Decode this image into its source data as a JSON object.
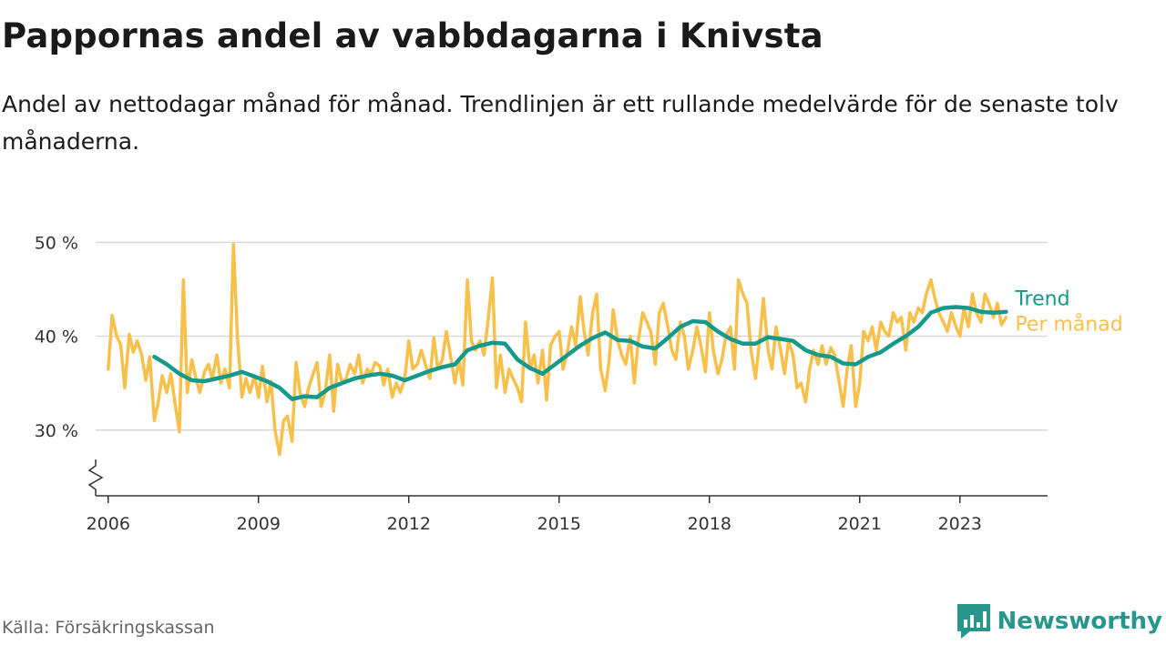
{
  "header": {
    "title": "Pappornas andel av vabbdagarna i Knivsta",
    "subtitle": "Andel av nettodagar månad för månad. Trendlinjen är ett rullande medelvärde för de senaste tolv månaderna."
  },
  "footer": {
    "source": "Källa: Försäkringskassan",
    "brand": "Newsworthy"
  },
  "colors": {
    "trend": "#14998a",
    "monthly": "#f7c04b",
    "grid": "#d9d9d9",
    "axis": "#333333",
    "brand": "#26978a"
  },
  "chart_data": {
    "type": "line",
    "title": "Pappornas andel av vabbdagarna i Knivsta",
    "xlabel": "",
    "ylabel": "",
    "xlim": [
      2005.75,
      2024.75
    ],
    "ylim": [
      23.0,
      51.0
    ],
    "ybreak": true,
    "grid": true,
    "y_ticks": [
      {
        "value": 30,
        "label": "30 %"
      },
      {
        "value": 40,
        "label": "40 %"
      },
      {
        "value": 50,
        "label": "50 %"
      }
    ],
    "x_ticks": [
      {
        "value": 2006,
        "label": "2006"
      },
      {
        "value": 2009,
        "label": "2009"
      },
      {
        "value": 2012,
        "label": "2012"
      },
      {
        "value": 2015,
        "label": "2015"
      },
      {
        "value": 2018,
        "label": "2018"
      },
      {
        "value": 2021,
        "label": "2021"
      },
      {
        "value": 2023,
        "label": "2023"
      }
    ],
    "series": [
      {
        "name": "Per månad",
        "color": "#f7c04b",
        "points": [
          [
            2006.0,
            36.5
          ],
          [
            2006.08,
            42.2
          ],
          [
            2006.17,
            40.0
          ],
          [
            2006.25,
            39.1
          ],
          [
            2006.33,
            34.5
          ],
          [
            2006.42,
            40.2
          ],
          [
            2006.5,
            38.3
          ],
          [
            2006.58,
            39.5
          ],
          [
            2006.67,
            38.0
          ],
          [
            2006.75,
            35.3
          ],
          [
            2006.83,
            37.8
          ],
          [
            2006.92,
            31.0
          ],
          [
            2007.0,
            33.0
          ],
          [
            2007.08,
            35.8
          ],
          [
            2007.17,
            34.0
          ],
          [
            2007.25,
            36.0
          ],
          [
            2007.33,
            33.0
          ],
          [
            2007.42,
            29.8
          ],
          [
            2007.5,
            46.0
          ],
          [
            2007.58,
            34.0
          ],
          [
            2007.67,
            37.5
          ],
          [
            2007.75,
            35.5
          ],
          [
            2007.83,
            34.0
          ],
          [
            2007.92,
            36.2
          ],
          [
            2008.0,
            37.0
          ],
          [
            2008.08,
            35.5
          ],
          [
            2008.17,
            38.0
          ],
          [
            2008.25,
            35.0
          ],
          [
            2008.33,
            36.5
          ],
          [
            2008.42,
            34.5
          ],
          [
            2008.5,
            49.8
          ],
          [
            2008.58,
            40.0
          ],
          [
            2008.67,
            33.5
          ],
          [
            2008.75,
            35.5
          ],
          [
            2008.83,
            34.0
          ],
          [
            2008.92,
            35.8
          ],
          [
            2009.0,
            33.5
          ],
          [
            2009.08,
            36.8
          ],
          [
            2009.17,
            33.0
          ],
          [
            2009.25,
            35.2
          ],
          [
            2009.33,
            30.0
          ],
          [
            2009.42,
            27.4
          ],
          [
            2009.5,
            31.0
          ],
          [
            2009.58,
            31.5
          ],
          [
            2009.67,
            28.8
          ],
          [
            2009.75,
            37.2
          ],
          [
            2009.83,
            34.0
          ],
          [
            2009.92,
            32.5
          ],
          [
            2010.0,
            34.5
          ],
          [
            2010.08,
            35.8
          ],
          [
            2010.17,
            37.2
          ],
          [
            2010.25,
            32.5
          ],
          [
            2010.33,
            34.0
          ],
          [
            2010.42,
            38.0
          ],
          [
            2010.5,
            32.0
          ],
          [
            2010.58,
            37.0
          ],
          [
            2010.67,
            35.0
          ],
          [
            2010.75,
            35.5
          ],
          [
            2010.83,
            37.0
          ],
          [
            2010.92,
            36.0
          ],
          [
            2011.0,
            38.0
          ],
          [
            2011.08,
            35.0
          ],
          [
            2011.17,
            36.5
          ],
          [
            2011.25,
            36.0
          ],
          [
            2011.33,
            37.2
          ],
          [
            2011.42,
            36.8
          ],
          [
            2011.5,
            34.8
          ],
          [
            2011.58,
            36.5
          ],
          [
            2011.67,
            33.5
          ],
          [
            2011.75,
            35.0
          ],
          [
            2011.83,
            34.0
          ],
          [
            2011.92,
            35.5
          ],
          [
            2012.0,
            39.5
          ],
          [
            2012.08,
            36.5
          ],
          [
            2012.17,
            37.0
          ],
          [
            2012.25,
            38.5
          ],
          [
            2012.33,
            37.0
          ],
          [
            2012.42,
            35.5
          ],
          [
            2012.5,
            39.8
          ],
          [
            2012.58,
            36.5
          ],
          [
            2012.67,
            37.5
          ],
          [
            2012.75,
            40.5
          ],
          [
            2012.83,
            38.0
          ],
          [
            2012.92,
            35.0
          ],
          [
            2013.0,
            37.5
          ],
          [
            2013.08,
            34.8
          ],
          [
            2013.17,
            46.0
          ],
          [
            2013.25,
            39.5
          ],
          [
            2013.33,
            38.5
          ],
          [
            2013.42,
            39.5
          ],
          [
            2013.5,
            38.0
          ],
          [
            2013.58,
            41.5
          ],
          [
            2013.67,
            46.2
          ],
          [
            2013.75,
            34.5
          ],
          [
            2013.83,
            38.0
          ],
          [
            2013.92,
            34.0
          ],
          [
            2014.0,
            36.5
          ],
          [
            2014.08,
            35.5
          ],
          [
            2014.17,
            34.5
          ],
          [
            2014.25,
            33.0
          ],
          [
            2014.33,
            41.5
          ],
          [
            2014.42,
            36.5
          ],
          [
            2014.5,
            38.0
          ],
          [
            2014.58,
            35.0
          ],
          [
            2014.67,
            38.5
          ],
          [
            2014.75,
            33.2
          ],
          [
            2014.83,
            39.0
          ],
          [
            2014.92,
            40.0
          ],
          [
            2015.0,
            40.5
          ],
          [
            2015.08,
            36.5
          ],
          [
            2015.17,
            38.5
          ],
          [
            2015.25,
            41.0
          ],
          [
            2015.33,
            39.0
          ],
          [
            2015.42,
            44.2
          ],
          [
            2015.5,
            40.5
          ],
          [
            2015.58,
            38.0
          ],
          [
            2015.67,
            42.5
          ],
          [
            2015.75,
            44.5
          ],
          [
            2015.83,
            36.5
          ],
          [
            2015.92,
            34.2
          ],
          [
            2016.0,
            37.5
          ],
          [
            2016.08,
            42.8
          ],
          [
            2016.17,
            39.5
          ],
          [
            2016.25,
            38.0
          ],
          [
            2016.33,
            37.0
          ],
          [
            2016.42,
            40.0
          ],
          [
            2016.5,
            35.0
          ],
          [
            2016.58,
            39.5
          ],
          [
            2016.67,
            42.5
          ],
          [
            2016.75,
            41.5
          ],
          [
            2016.83,
            40.5
          ],
          [
            2016.92,
            37.0
          ],
          [
            2017.0,
            42.5
          ],
          [
            2017.08,
            43.5
          ],
          [
            2017.17,
            41.0
          ],
          [
            2017.25,
            38.5
          ],
          [
            2017.33,
            37.5
          ],
          [
            2017.42,
            41.5
          ],
          [
            2017.5,
            40.0
          ],
          [
            2017.58,
            36.5
          ],
          [
            2017.67,
            38.5
          ],
          [
            2017.75,
            41.0
          ],
          [
            2017.83,
            39.0
          ],
          [
            2017.92,
            36.2
          ],
          [
            2018.0,
            42.5
          ],
          [
            2018.08,
            38.5
          ],
          [
            2018.17,
            36.0
          ],
          [
            2018.25,
            37.5
          ],
          [
            2018.33,
            40.0
          ],
          [
            2018.42,
            41.0
          ],
          [
            2018.5,
            36.5
          ],
          [
            2018.58,
            46.0
          ],
          [
            2018.67,
            44.5
          ],
          [
            2018.75,
            43.5
          ],
          [
            2018.83,
            38.5
          ],
          [
            2018.92,
            35.5
          ],
          [
            2019.0,
            39.5
          ],
          [
            2019.08,
            44.0
          ],
          [
            2019.17,
            38.5
          ],
          [
            2019.25,
            36.5
          ],
          [
            2019.33,
            41.0
          ],
          [
            2019.42,
            38.5
          ],
          [
            2019.5,
            36.0
          ],
          [
            2019.58,
            39.5
          ],
          [
            2019.67,
            38.0
          ],
          [
            2019.75,
            34.5
          ],
          [
            2019.83,
            35.0
          ],
          [
            2019.92,
            33.0
          ],
          [
            2020.0,
            36.5
          ],
          [
            2020.08,
            38.5
          ],
          [
            2020.17,
            37.0
          ],
          [
            2020.25,
            39.0
          ],
          [
            2020.33,
            37.0
          ],
          [
            2020.42,
            38.8
          ],
          [
            2020.5,
            38.0
          ],
          [
            2020.58,
            35.5
          ],
          [
            2020.67,
            32.5
          ],
          [
            2020.75,
            36.5
          ],
          [
            2020.83,
            39.0
          ],
          [
            2020.92,
            32.5
          ],
          [
            2021.0,
            35.0
          ],
          [
            2021.08,
            40.5
          ],
          [
            2021.17,
            39.5
          ],
          [
            2021.25,
            41.0
          ],
          [
            2021.33,
            38.5
          ],
          [
            2021.42,
            41.5
          ],
          [
            2021.5,
            40.5
          ],
          [
            2021.58,
            40.0
          ],
          [
            2021.67,
            42.5
          ],
          [
            2021.75,
            41.5
          ],
          [
            2021.83,
            42.0
          ],
          [
            2021.92,
            38.5
          ],
          [
            2022.0,
            42.5
          ],
          [
            2022.08,
            41.5
          ],
          [
            2022.17,
            43.0
          ],
          [
            2022.25,
            42.5
          ],
          [
            2022.33,
            44.5
          ],
          [
            2022.42,
            46.0
          ],
          [
            2022.5,
            44.0
          ],
          [
            2022.58,
            42.5
          ],
          [
            2022.67,
            41.5
          ],
          [
            2022.75,
            40.5
          ],
          [
            2022.83,
            42.5
          ],
          [
            2022.92,
            41.0
          ],
          [
            2023.0,
            40.0
          ],
          [
            2023.08,
            43.0
          ],
          [
            2023.17,
            41.0
          ],
          [
            2023.25,
            44.5
          ],
          [
            2023.33,
            42.5
          ],
          [
            2023.42,
            41.5
          ],
          [
            2023.5,
            44.5
          ],
          [
            2023.58,
            43.5
          ],
          [
            2023.67,
            42.0
          ],
          [
            2023.75,
            43.5
          ],
          [
            2023.83,
            41.2
          ],
          [
            2023.92,
            42.0
          ]
        ]
      },
      {
        "name": "Trend",
        "color": "#14998a",
        "points": [
          [
            2006.92,
            37.8
          ],
          [
            2007.17,
            37.0
          ],
          [
            2007.42,
            36.0
          ],
          [
            2007.67,
            35.3
          ],
          [
            2007.92,
            35.2
          ],
          [
            2008.17,
            35.5
          ],
          [
            2008.42,
            35.8
          ],
          [
            2008.67,
            36.2
          ],
          [
            2008.92,
            35.7
          ],
          [
            2009.17,
            35.2
          ],
          [
            2009.42,
            34.5
          ],
          [
            2009.67,
            33.3
          ],
          [
            2009.92,
            33.6
          ],
          [
            2010.17,
            33.5
          ],
          [
            2010.42,
            34.5
          ],
          [
            2010.67,
            35.0
          ],
          [
            2010.92,
            35.5
          ],
          [
            2011.17,
            35.8
          ],
          [
            2011.42,
            36.0
          ],
          [
            2011.67,
            35.8
          ],
          [
            2011.92,
            35.3
          ],
          [
            2012.17,
            35.8
          ],
          [
            2012.42,
            36.3
          ],
          [
            2012.67,
            36.7
          ],
          [
            2012.92,
            37.0
          ],
          [
            2013.17,
            38.5
          ],
          [
            2013.42,
            39.0
          ],
          [
            2013.67,
            39.3
          ],
          [
            2013.92,
            39.2
          ],
          [
            2014.17,
            37.5
          ],
          [
            2014.42,
            36.6
          ],
          [
            2014.67,
            36.0
          ],
          [
            2014.92,
            37.0
          ],
          [
            2015.17,
            38.0
          ],
          [
            2015.42,
            39.0
          ],
          [
            2015.67,
            39.8
          ],
          [
            2015.92,
            40.4
          ],
          [
            2016.17,
            39.6
          ],
          [
            2016.42,
            39.5
          ],
          [
            2016.67,
            38.9
          ],
          [
            2016.92,
            38.7
          ],
          [
            2017.17,
            39.8
          ],
          [
            2017.42,
            41.0
          ],
          [
            2017.67,
            41.6
          ],
          [
            2017.92,
            41.5
          ],
          [
            2018.17,
            40.5
          ],
          [
            2018.42,
            39.7
          ],
          [
            2018.67,
            39.2
          ],
          [
            2018.92,
            39.2
          ],
          [
            2019.17,
            39.9
          ],
          [
            2019.42,
            39.7
          ],
          [
            2019.67,
            39.5
          ],
          [
            2019.92,
            38.5
          ],
          [
            2020.17,
            38.0
          ],
          [
            2020.42,
            37.8
          ],
          [
            2020.67,
            37.1
          ],
          [
            2020.92,
            37.0
          ],
          [
            2021.17,
            37.8
          ],
          [
            2021.42,
            38.3
          ],
          [
            2021.67,
            39.2
          ],
          [
            2021.92,
            40.0
          ],
          [
            2022.17,
            41.0
          ],
          [
            2022.42,
            42.5
          ],
          [
            2022.67,
            43.0
          ],
          [
            2022.92,
            43.1
          ],
          [
            2023.17,
            43.0
          ],
          [
            2023.42,
            42.6
          ],
          [
            2023.67,
            42.5
          ],
          [
            2023.92,
            42.6
          ]
        ]
      }
    ],
    "legend": [
      {
        "label": "Trend",
        "color": "#14998a"
      },
      {
        "label": "Per månad",
        "color": "#f7c04b"
      }
    ]
  }
}
